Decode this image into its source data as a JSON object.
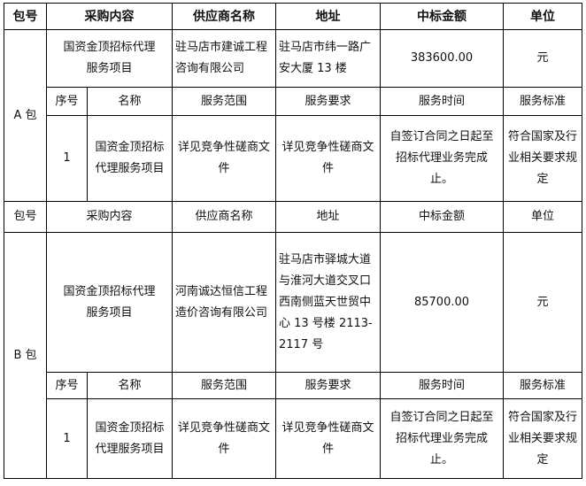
{
  "headers": [
    "包号",
    "采购内容",
    "供应商名称",
    "地址",
    "中标金额",
    "单位"
  ],
  "sub_headers": [
    "序号",
    "名称",
    "服务范围",
    "服务要求",
    "服务时间",
    "服务标准"
  ],
  "package_a": {
    "label": "A 包",
    "content": "国资金顶招标代理服务项目",
    "supplier": "驻马店市建诚工程咨询有限公司",
    "address": "驻马店市纬一路广安大厦 13 楼",
    "amount": "383600.00",
    "unit": "元",
    "item": {
      "no": "1",
      "name": "国资金顶招标代理服务项目",
      "scope": "详见竞争性磋商文件",
      "requirement": "详见竞争性磋商文件",
      "time": "自签订合同之日起至招标代理业务完成止。",
      "standard": "符合国家及行业相关要求规定"
    }
  },
  "package_b": {
    "label": "B 包",
    "content": "国资金顶招标代理服务项目",
    "supplier": "河南诚达恒信工程造价咨询有限公司",
    "address": "驻马店市驿城大道与淮河大道交叉口西南侧蓝天世贸中心 13 号楼 2113-2117 号",
    "amount": "85700.00",
    "unit": "元",
    "item": {
      "no": "1",
      "name": "国资金顶招标代理服务项目",
      "scope": "详见竞争性磋商文件",
      "requirement": "详见竞争性磋商文件",
      "time": "自签订合同之日起至招标代理业务完成止。",
      "standard": "符合国家及行业相关要求规定"
    }
  }
}
